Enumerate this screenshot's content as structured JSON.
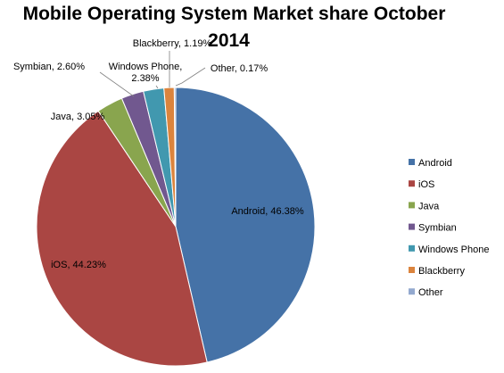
{
  "chart_data": {
    "type": "pie",
    "title_lines": [
      "Mobile Operating System Market share October",
      "2014"
    ],
    "categories": [
      "Android",
      "iOS",
      "Java",
      "Symbian",
      "Windows Phone",
      "Blackberry",
      "Other"
    ],
    "values": [
      46.38,
      44.23,
      3.05,
      2.6,
      2.38,
      1.19,
      0.17
    ],
    "data_labels": [
      [
        "Android, 46.38%"
      ],
      [
        "iOS, 44.23%"
      ],
      [
        "Java, 3.05%"
      ],
      [
        "Symbian, 2.60%"
      ],
      [
        "Windows Phone,",
        "2.38%"
      ],
      [
        "Blackberry, 1.19%"
      ],
      [
        "Other, 0.17%"
      ]
    ],
    "colors": [
      "#4572A7",
      "#AA4643",
      "#89A54E",
      "#71588F",
      "#4198AF",
      "#DB843D",
      "#93A9CF"
    ],
    "legend_position": "right",
    "start_angle": "top, clockwise"
  }
}
